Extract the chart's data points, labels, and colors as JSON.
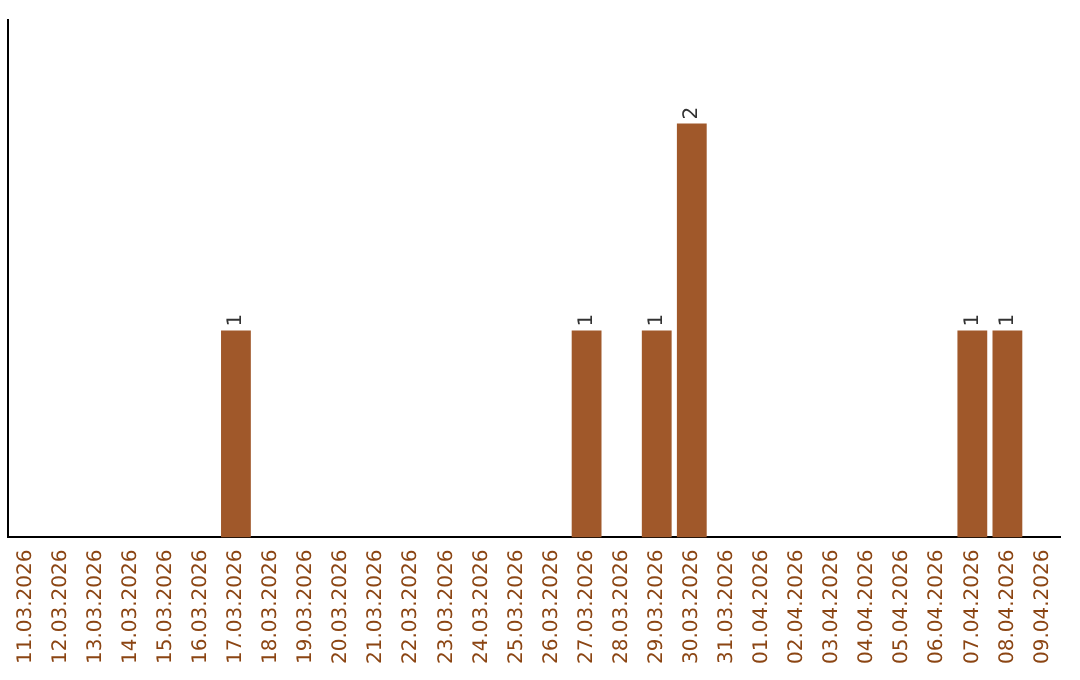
{
  "chart_data": {
    "type": "bar",
    "categories": [
      "11.03.2026",
      "12.03.2026",
      "13.03.2026",
      "14.03.2026",
      "15.03.2026",
      "16.03.2026",
      "17.03.2026",
      "18.03.2026",
      "19.03.2026",
      "20.03.2026",
      "21.03.2026",
      "22.03.2026",
      "23.03.2026",
      "24.03.2026",
      "25.03.2026",
      "26.03.2026",
      "27.03.2026",
      "28.03.2026",
      "29.03.2026",
      "30.03.2026",
      "31.03.2026",
      "01.04.2026",
      "02.04.2026",
      "03.04.2026",
      "04.04.2026",
      "05.04.2026",
      "06.04.2026",
      "07.04.2026",
      "08.04.2026",
      "09.04.2026"
    ],
    "values": [
      0,
      0,
      0,
      0,
      0,
      0,
      1,
      0,
      0,
      0,
      0,
      0,
      0,
      0,
      0,
      0,
      1,
      0,
      1,
      2,
      0,
      0,
      0,
      0,
      0,
      0,
      0,
      1,
      1,
      0
    ],
    "value_labels": [
      null,
      null,
      null,
      null,
      null,
      null,
      "1",
      null,
      null,
      null,
      null,
      null,
      null,
      null,
      null,
      null,
      "1",
      null,
      "1",
      "2",
      null,
      null,
      null,
      null,
      null,
      null,
      null,
      "1",
      "1",
      null
    ],
    "color": "#a0582a",
    "tick_labels": "x",
    "grid": false,
    "legend": false
  }
}
